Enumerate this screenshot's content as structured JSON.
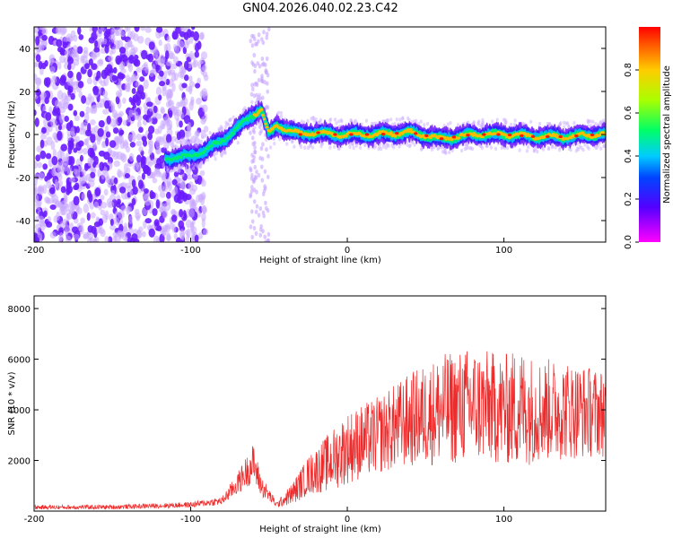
{
  "chart_data": [
    {
      "type": "heatmap",
      "title": "GN04.2026.040.02.23.C42",
      "xlabel": "Height of straight line (km)",
      "ylabel": "Frequency (Hz)",
      "xlim": [
        -200,
        165
      ],
      "ylim": [
        -50,
        50
      ],
      "xticks": [
        -200,
        -100,
        0,
        100
      ],
      "yticks": [
        -40,
        -20,
        0,
        20,
        40
      ],
      "colorbar": {
        "label": "Normalized spectral amplitude",
        "range": [
          0,
          1
        ],
        "ticks": [
          0.0,
          0.2,
          0.4,
          0.6,
          0.8
        ]
      },
      "ridge": {
        "description_points_x": [
          -115,
          -100,
          -90,
          -80,
          -70,
          -62,
          -55,
          -50,
          -45,
          -40,
          -30,
          -20,
          -10,
          0,
          20,
          40,
          60,
          80,
          100,
          120,
          140,
          160
        ],
        "description_points_y": [
          -11,
          -10,
          -7,
          -3,
          3,
          8,
          12,
          0,
          4,
          3,
          0,
          1,
          0,
          0,
          0,
          1,
          -2,
          0,
          0,
          -1,
          -1,
          0
        ]
      }
    },
    {
      "type": "line",
      "xlabel": "Height of straight line (km)",
      "ylabel": "SNR (10 * v/v)",
      "xlim": [
        -200,
        165
      ],
      "ylim": [
        0,
        8500
      ],
      "xticks": [
        -200,
        -100,
        0,
        100
      ],
      "yticks": [
        2000,
        4000,
        6000,
        8000
      ],
      "series": [
        {
          "name": "SNR",
          "color": "#ee2a2a",
          "envelope_x": [
            -200,
            -150,
            -100,
            -80,
            -70,
            -60,
            -55,
            -45,
            -35,
            -25,
            -10,
            0,
            20,
            40,
            60,
            80,
            100,
            110,
            120,
            140,
            160,
            165
          ],
          "envelope_mean": [
            150,
            160,
            250,
            400,
            1100,
            1900,
            1000,
            250,
            700,
            1400,
            2000,
            2500,
            3000,
            3600,
            4000,
            4200,
            4000,
            4100,
            4000,
            4000,
            3900,
            3900
          ],
          "envelope_spread": [
            80,
            80,
            100,
            150,
            400,
            700,
            400,
            100,
            400,
            700,
            1100,
            1300,
            1400,
            1700,
            2000,
            2100,
            2000,
            2200,
            1900,
            1800,
            1600,
            1600
          ]
        }
      ]
    }
  ]
}
